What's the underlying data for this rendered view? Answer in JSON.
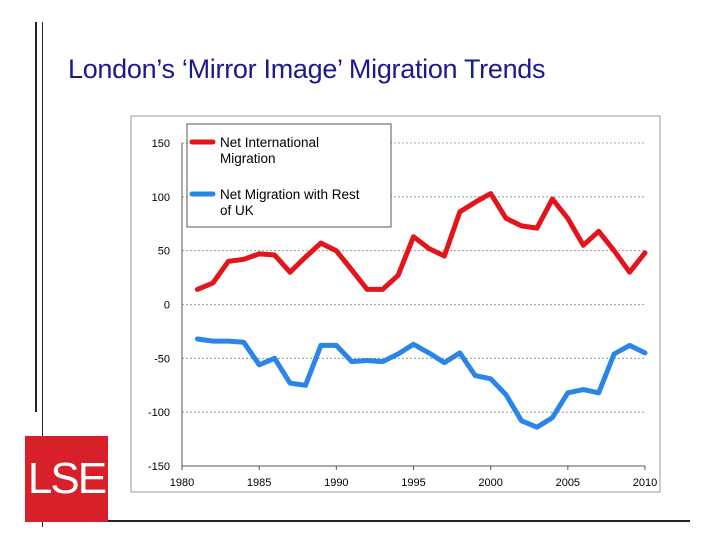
{
  "slide": {
    "title": "London’s ‘Mirror Image’ Migration Trends",
    "logo_text": "LSE"
  },
  "colors": {
    "title": "#1a1a8c",
    "logo_bg": "#d8202a",
    "series_international": "#e3141b",
    "series_uk": "#2b85e8"
  },
  "chart_data": {
    "type": "line",
    "title": "",
    "xlabel": "",
    "ylabel": "",
    "xlim": [
      1980,
      2010
    ],
    "ylim": [
      -150,
      150
    ],
    "x_ticks": [
      1980,
      1985,
      1990,
      1995,
      2000,
      2005,
      2010
    ],
    "y_ticks": [
      150,
      100,
      50,
      0,
      -50,
      -100,
      -150
    ],
    "grid": "horizontal",
    "legend_position": "top-left",
    "x": [
      1981,
      1982,
      1983,
      1984,
      1985,
      1986,
      1987,
      1988,
      1989,
      1990,
      1991,
      1992,
      1993,
      1994,
      1995,
      1996,
      1997,
      1998,
      1999,
      2000,
      2001,
      2002,
      2003,
      2004,
      2005,
      2006,
      2007,
      2008,
      2009,
      2010
    ],
    "series": [
      {
        "name": "Net International Migration",
        "legend_lines": [
          "Net International",
          "Migration"
        ],
        "color": "#e3141b",
        "values": [
          14,
          20,
          40,
          42,
          47,
          46,
          30,
          44,
          57,
          50,
          32,
          14,
          14,
          27,
          63,
          52,
          45,
          86,
          95,
          103,
          80,
          73,
          71,
          98,
          80,
          55,
          68,
          50,
          30,
          48
        ]
      },
      {
        "name": "Net Migration with Rest of UK",
        "legend_lines": [
          "Net Migration with Rest",
          "of UK"
        ],
        "color": "#2b85e8",
        "values": [
          -32,
          -34,
          -34,
          -35,
          -56,
          -50,
          -73,
          -75,
          -38,
          -38,
          -53,
          -52,
          -53,
          -46,
          -37,
          -45,
          -54,
          -45,
          -66,
          -69,
          -84,
          -108,
          -114,
          -105,
          -82,
          -79,
          -82,
          -46,
          -38,
          -45
        ]
      }
    ]
  }
}
